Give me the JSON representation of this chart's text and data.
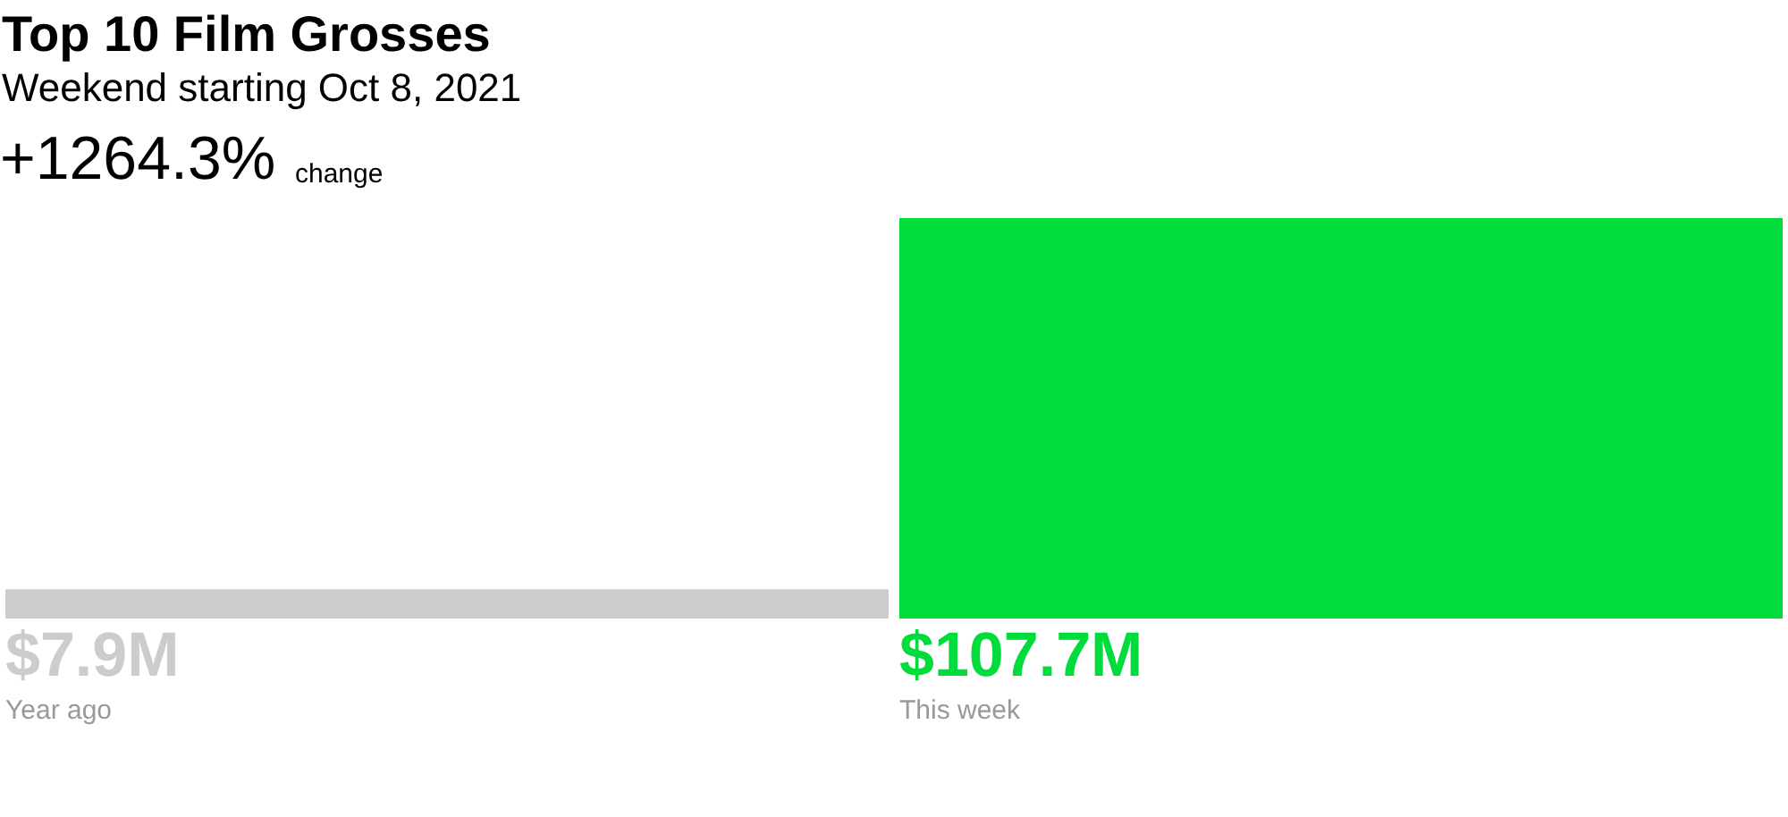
{
  "chart_data": {
    "type": "bar",
    "title": "Top 10 Film Grosses",
    "subtitle": "Weekend starting Oct 8, 2021",
    "annotations": [
      "+1264.3%",
      "change"
    ],
    "categories": [
      "Year ago",
      "This week"
    ],
    "values": [
      7.9,
      107.7
    ],
    "colors": [
      "#cccccc",
      "#00dc3c"
    ],
    "value_labels": [
      "$7.9M",
      "$107.7M"
    ],
    "tick_labels": "x"
  }
}
